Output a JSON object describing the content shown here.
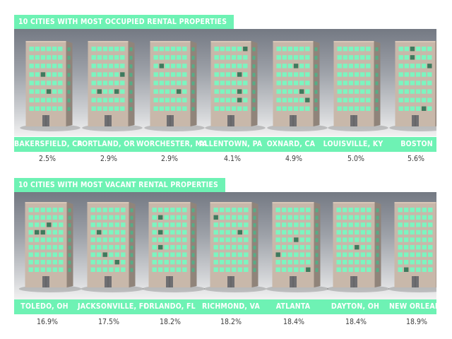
{
  "chart_data": [
    {
      "type": "bar",
      "title": "10 CITIES WITH MOST OCCUPIED RENTAL PROPERTIES",
      "categories": [
        "BAKERSFIELD, CA",
        "PORTLAND, OR",
        "WORCHESTER, MA",
        "ALLENTOWN, PA",
        "OXNARD, CA",
        "LOUISVILLE, KY",
        "BOSTON"
      ],
      "values": [
        "2.5%",
        "2.9%",
        "2.9%",
        "4.1%",
        "4.9%",
        "5.0%",
        "5.6%"
      ],
      "colors": {
        "accent": "#6ef2b4",
        "window": "#7cf5c0",
        "building": "#c8b8aa"
      }
    },
    {
      "type": "bar",
      "title": "10 CITIES WITH MOST VACANT RENTAL PROPERTIES",
      "categories": [
        "TOLEDO, OH",
        "JACKSONVILLE, FL",
        "ORLANDO, FL",
        "RICHMOND, VA",
        "ATLANTA",
        "DAYTON, OH",
        "NEW ORLEANS"
      ],
      "values": [
        "16.9%",
        "17.5%",
        "18.2%",
        "18.2%",
        "18.4%",
        "18.4%",
        "18.9%"
      ],
      "colors": {
        "accent": "#6ef2b4",
        "window": "#7cf5c0",
        "building": "#c8b8aa"
      }
    }
  ]
}
